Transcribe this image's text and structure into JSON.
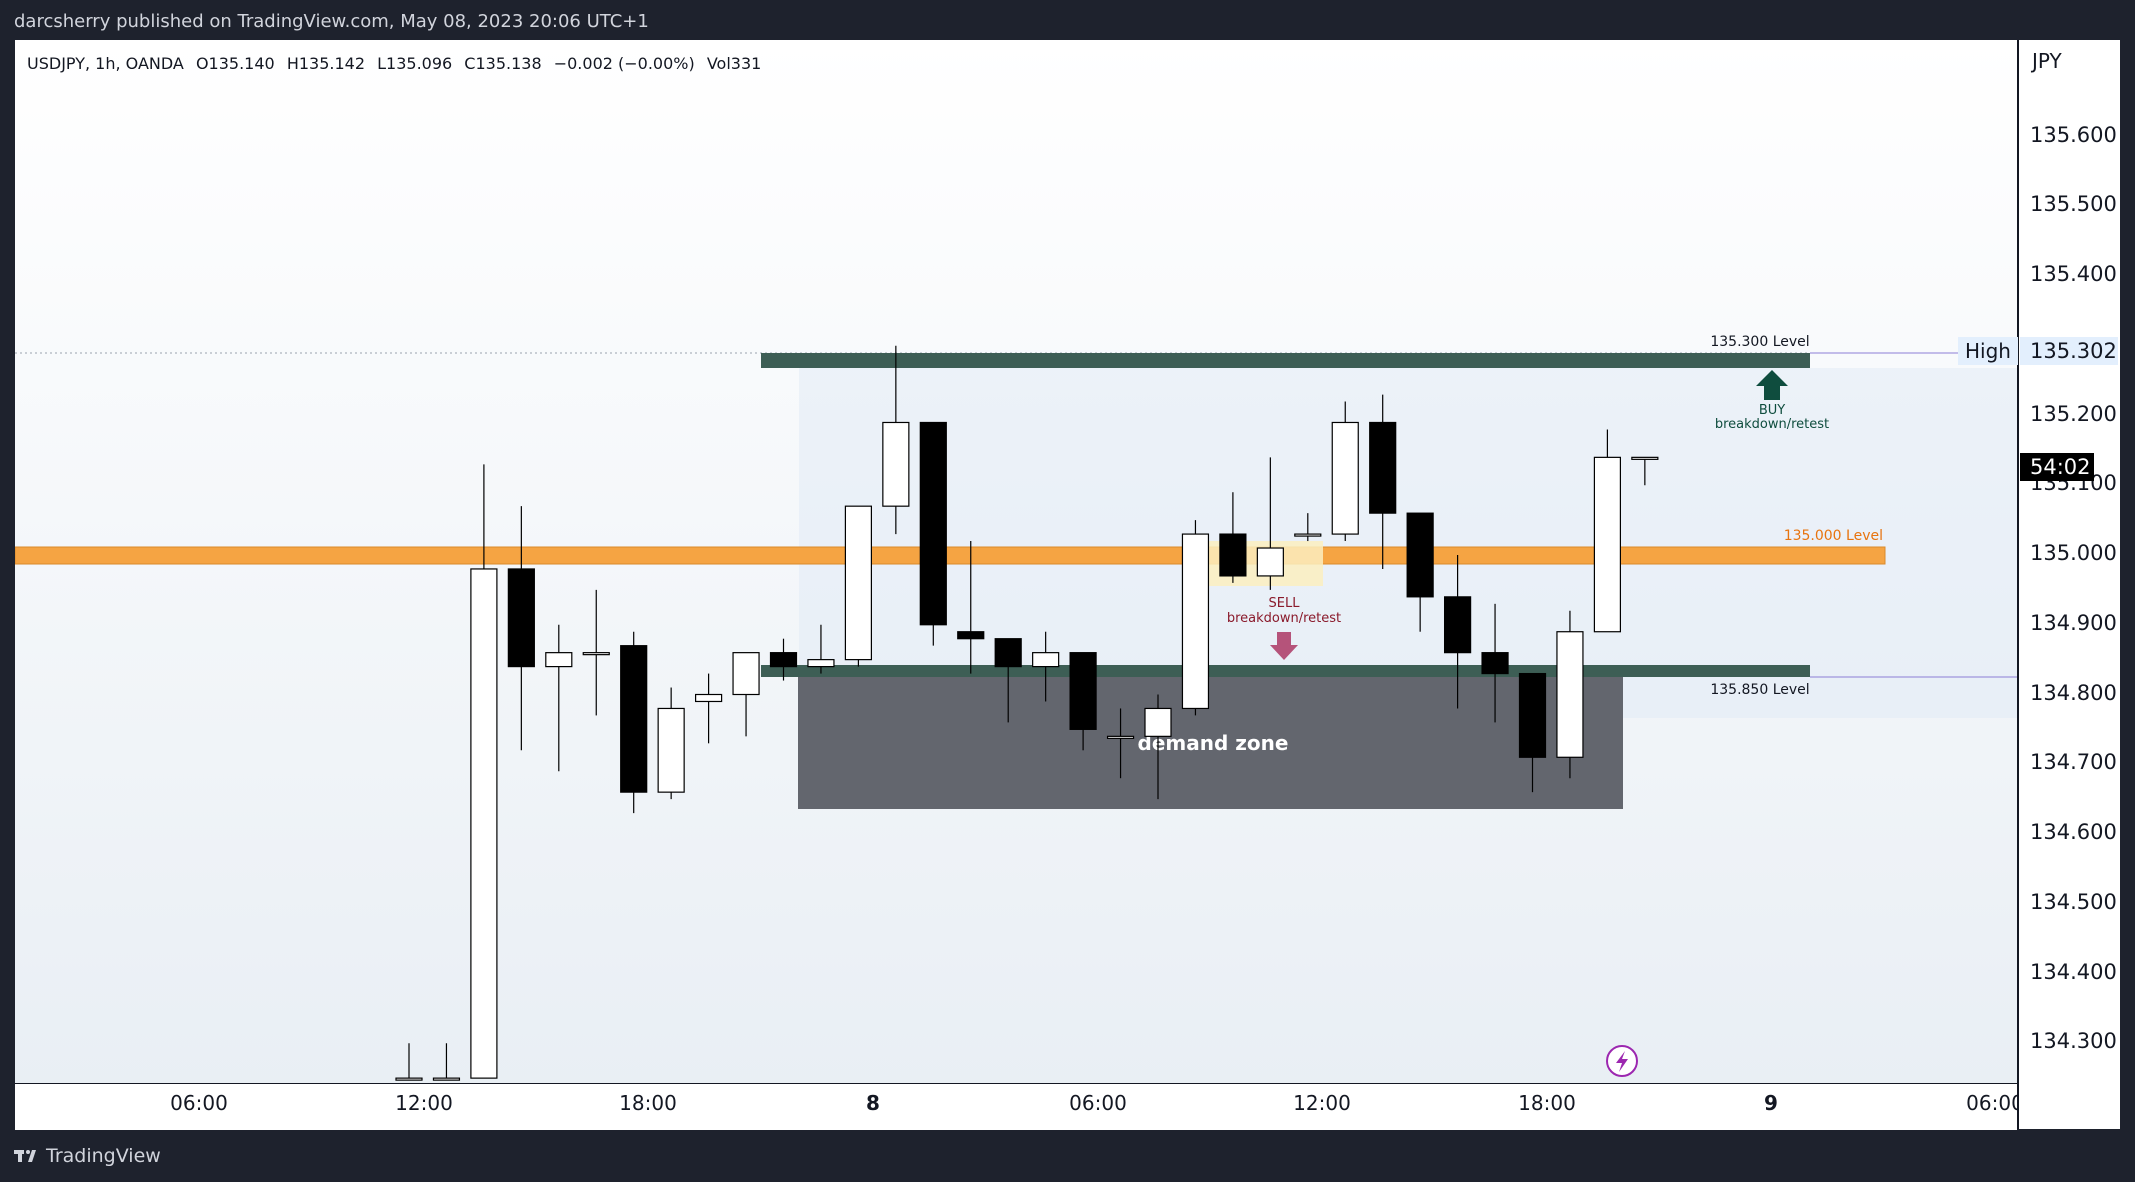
{
  "header": {
    "published": "darcsherry published on TradingView.com, May 08, 2023 20:06 UTC+1"
  },
  "footer": {
    "brand": "TradingView"
  },
  "symbol": {
    "name": "USDJPY, 1h, OANDA",
    "open": "O135.140",
    "high": "H135.142",
    "low": "L135.096",
    "close": "C135.138",
    "change": "−0.002 (−0.00%)",
    "volume": "Vol331"
  },
  "price_axis": {
    "currency": "JPY",
    "ticks": [
      "135.600",
      "135.500",
      "135.400",
      "135.200",
      "135.100",
      "135.000",
      "134.900",
      "134.800",
      "134.700",
      "134.600",
      "134.500",
      "134.400",
      "134.300"
    ],
    "high_tag": "High",
    "high_price": "135.302",
    "countdown": "54:02"
  },
  "time_axis": {
    "labels": [
      "06:00",
      "12:00",
      "18:00",
      "8",
      "06:00",
      "12:00",
      "18:00",
      "9",
      "06:00"
    ]
  },
  "annotations": {
    "level_top": "135.300 Level",
    "level_mid": "135.000 Level",
    "level_bottom": "135.850 Level",
    "buy_title": "BUY",
    "buy_sub": "breakdown/retest",
    "sell_title": "SELL",
    "sell_sub": "breakdown/retest",
    "zone": "demand zone"
  },
  "colors": {
    "up_fill": "#ffffff",
    "down_fill": "#000000",
    "level_band": "#3d5e55",
    "orange_band": "#f5a443",
    "demand_zone": "#63666e",
    "buy_arrow": "#0f4d3e",
    "sell_arrow": "#b5537a",
    "orange_text": "#e8740f",
    "sell_text": "#8a1a2b"
  },
  "chart_data": {
    "type": "candlestick",
    "symbol": "USDJPY",
    "interval": "1h",
    "ylim": [
      134.25,
      135.72
    ],
    "candles": [
      {
        "o": 134.25,
        "h": 134.3,
        "l": 134.25,
        "c": 134.25
      },
      {
        "o": 134.25,
        "h": 134.3,
        "l": 134.25,
        "c": 134.25
      },
      {
        "o": 134.25,
        "h": 135.13,
        "l": 134.25,
        "c": 134.98
      },
      {
        "o": 134.98,
        "h": 135.07,
        "l": 134.72,
        "c": 134.84
      },
      {
        "o": 134.84,
        "h": 134.9,
        "l": 134.69,
        "c": 134.86
      },
      {
        "o": 134.86,
        "h": 134.95,
        "l": 134.77,
        "c": 134.86
      },
      {
        "o": 134.87,
        "h": 134.89,
        "l": 134.63,
        "c": 134.66
      },
      {
        "o": 134.66,
        "h": 134.81,
        "l": 134.65,
        "c": 134.78
      },
      {
        "o": 134.79,
        "h": 134.83,
        "l": 134.73,
        "c": 134.8
      },
      {
        "o": 134.8,
        "h": 134.86,
        "l": 134.74,
        "c": 134.86
      },
      {
        "o": 134.86,
        "h": 134.88,
        "l": 134.82,
        "c": 134.84
      },
      {
        "o": 134.84,
        "h": 134.9,
        "l": 134.83,
        "c": 134.85
      },
      {
        "o": 134.85,
        "h": 135.07,
        "l": 134.84,
        "c": 135.07
      },
      {
        "o": 135.07,
        "h": 135.3,
        "l": 135.03,
        "c": 135.19
      },
      {
        "o": 135.19,
        "h": 135.19,
        "l": 134.87,
        "c": 134.9
      },
      {
        "o": 134.89,
        "h": 135.02,
        "l": 134.83,
        "c": 134.88
      },
      {
        "o": 134.88,
        "h": 134.88,
        "l": 134.76,
        "c": 134.84
      },
      {
        "o": 134.84,
        "h": 134.89,
        "l": 134.79,
        "c": 134.86
      },
      {
        "o": 134.86,
        "h": 134.86,
        "l": 134.72,
        "c": 134.75
      },
      {
        "o": 134.74,
        "h": 134.78,
        "l": 134.68,
        "c": 134.74
      },
      {
        "o": 134.74,
        "h": 134.8,
        "l": 134.65,
        "c": 134.78
      },
      {
        "o": 134.78,
        "h": 135.05,
        "l": 134.77,
        "c": 135.03
      },
      {
        "o": 135.03,
        "h": 135.09,
        "l": 134.96,
        "c": 134.97
      },
      {
        "o": 134.97,
        "h": 135.14,
        "l": 134.95,
        "c": 135.01
      },
      {
        "o": 135.03,
        "h": 135.06,
        "l": 135.02,
        "c": 135.03
      },
      {
        "o": 135.03,
        "h": 135.22,
        "l": 135.02,
        "c": 135.19
      },
      {
        "o": 135.19,
        "h": 135.23,
        "l": 134.98,
        "c": 135.06
      },
      {
        "o": 135.06,
        "h": 135.06,
        "l": 134.89,
        "c": 134.94
      },
      {
        "o": 134.94,
        "h": 135.0,
        "l": 134.78,
        "c": 134.86
      },
      {
        "o": 134.86,
        "h": 134.93,
        "l": 134.76,
        "c": 134.83
      },
      {
        "o": 134.83,
        "h": 134.83,
        "l": 134.66,
        "c": 134.71
      },
      {
        "o": 134.71,
        "h": 134.92,
        "l": 134.68,
        "c": 134.89
      },
      {
        "o": 134.89,
        "h": 135.18,
        "l": 134.89,
        "c": 135.14
      },
      {
        "o": 135.14,
        "h": 135.14,
        "l": 135.1,
        "c": 135.14
      }
    ]
  }
}
